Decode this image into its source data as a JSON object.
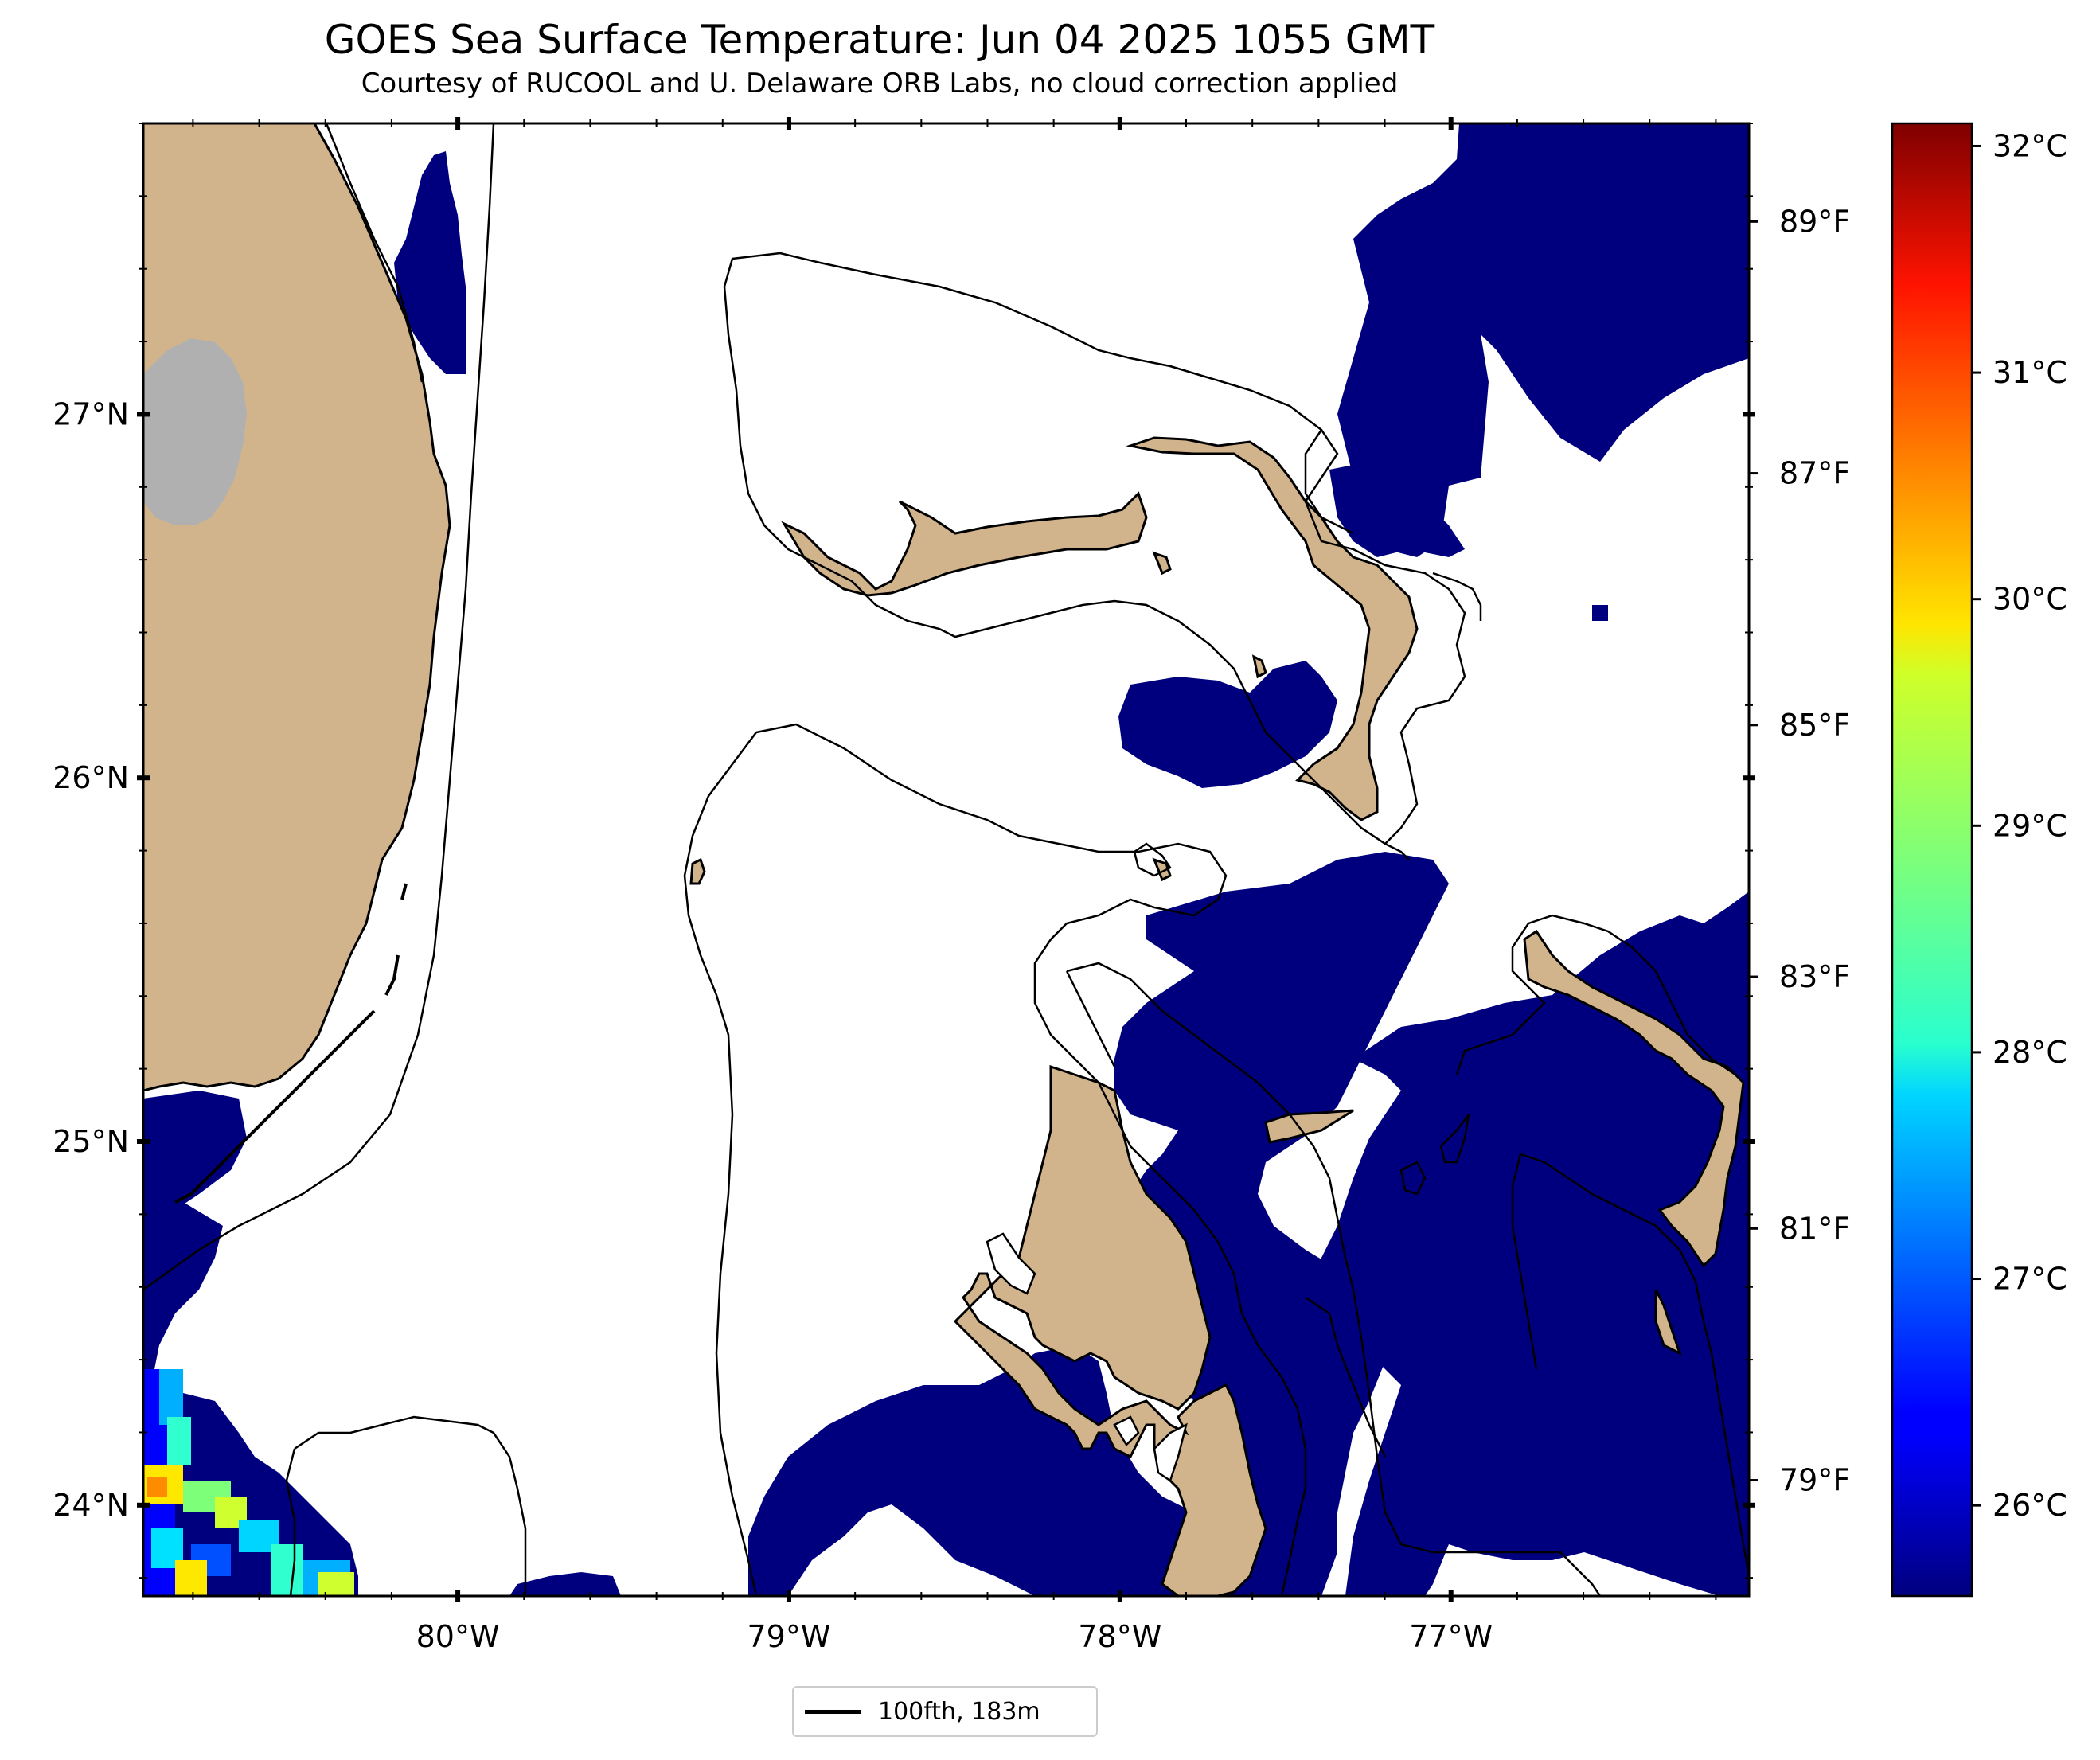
{
  "title": "GOES Sea Surface Temperature: Jun 04 2025 1055 GMT",
  "subtitle": "Courtesy of RUCOOL and U. Delaware ORB Labs, no cloud correction applied",
  "map": {
    "lon_ticks": [
      {
        "value": -80,
        "label": "80°W"
      },
      {
        "value": -79,
        "label": "79°W"
      },
      {
        "value": -78,
        "label": "78°W"
      },
      {
        "value": -77,
        "label": "77°W"
      }
    ],
    "lat_ticks": [
      {
        "value": 27,
        "label": "27°N"
      },
      {
        "value": 26,
        "label": "26°N"
      },
      {
        "value": 25,
        "label": "25°N"
      },
      {
        "value": 24,
        "label": "24°N"
      }
    ],
    "lon_range": [
      -80.95,
      -76.1
    ],
    "lat_range": [
      23.75,
      27.8
    ],
    "colors": {
      "land": "#d2b48c",
      "cloud_or_missing": "#ffffff",
      "inland_lake": "#b0b0b0",
      "sst_cold": "#00007f",
      "coast": "#000000"
    }
  },
  "colorbar": {
    "colormap": "jet",
    "celsius_range": [
      25.6,
      32.1
    ],
    "celsius_ticks": [
      {
        "value": 32,
        "label": "32°C"
      },
      {
        "value": 31,
        "label": "31°C"
      },
      {
        "value": 30,
        "label": "30°C"
      },
      {
        "value": 29,
        "label": "29°C"
      },
      {
        "value": 28,
        "label": "28°C"
      },
      {
        "value": 27,
        "label": "27°C"
      },
      {
        "value": 26,
        "label": "26°C"
      }
    ],
    "fahrenheit_ticks": [
      {
        "value": 89,
        "label": "89°F"
      },
      {
        "value": 87,
        "label": "87°F"
      },
      {
        "value": 85,
        "label": "85°F"
      },
      {
        "value": 83,
        "label": "83°F"
      },
      {
        "value": 81,
        "label": "81°F"
      },
      {
        "value": 79,
        "label": "79°F"
      }
    ]
  },
  "legend": {
    "label": "100fth, 183m"
  }
}
